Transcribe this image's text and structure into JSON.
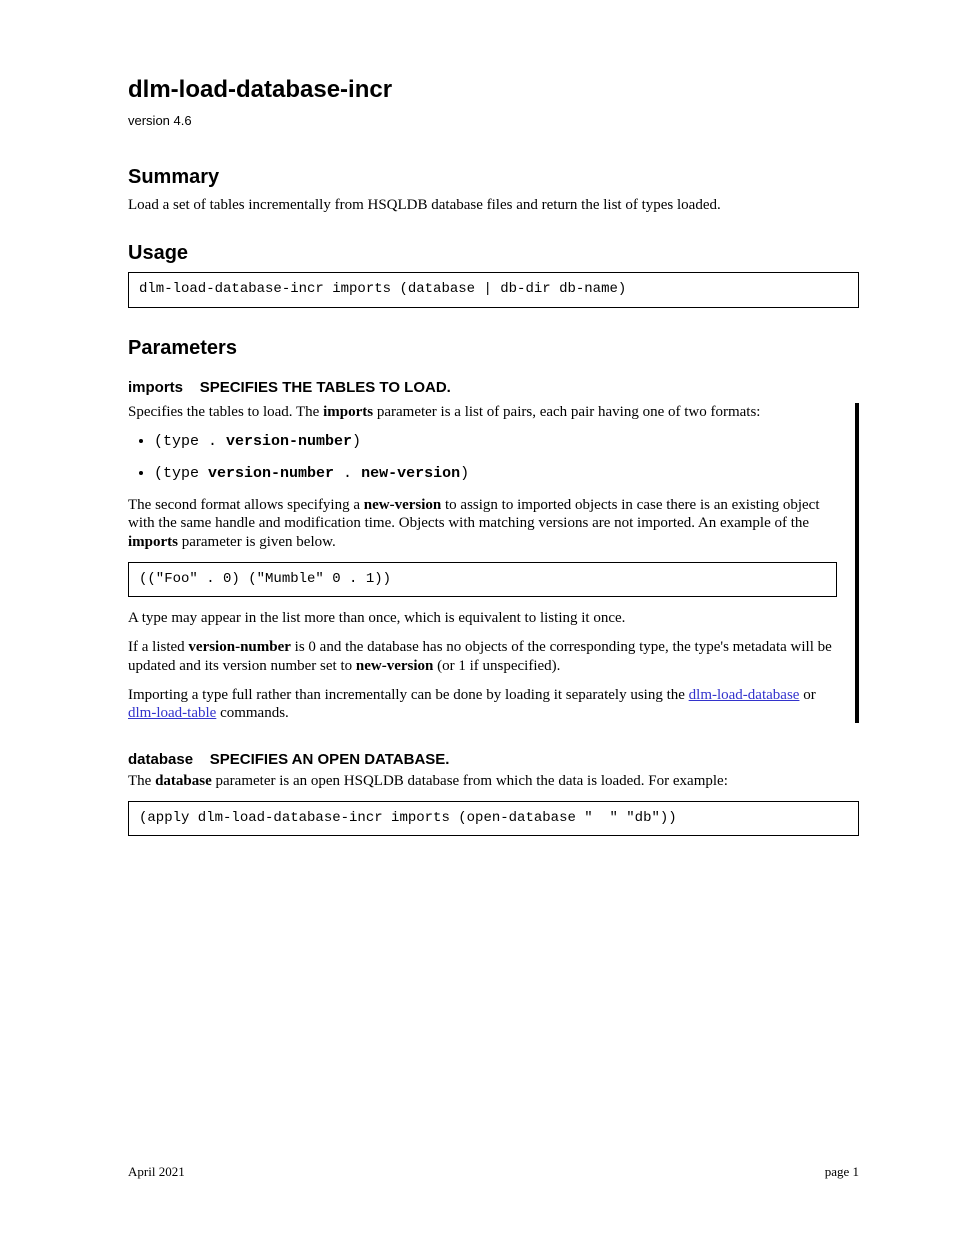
{
  "colors": {
    "link": "#3333cc",
    "text": "#000000",
    "bg": "#ffffff"
  },
  "title": "dlm-load-database-incr",
  "version": "version 4.6",
  "intro_h2": "Summary",
  "intro_p": "Load a set of tables incrementally from HSQLDB database files and return the list of types loaded.",
  "usage_h2": "Usage",
  "usage_code": "dlm-load-database-incr imports (database | db-dir db-name)",
  "params_h2": "Parameters",
  "param1": {
    "name": "imports",
    "desc": "SPECIFIES THE TABLES TO LOAD.",
    "line1_pre": "Specifies the tables to load. The ",
    "line1_imp": "imports",
    "line1_post": " parameter is a list of pairs, each pair having one of two formats:",
    "bullet1_pre": "(type . ",
    "bullet1_bold": "version-number",
    "bullet1_post": ")",
    "bullet2_pre": "(type ",
    "bullet2_bold": "version-number",
    "bullet2_mid": " . ",
    "bullet2_bold2": "new-version",
    "bullet2_post": ")",
    "para2_p1": "The second format allows specifying a ",
    "para2_nv": "new-version",
    "para2_p2": " to assign to imported objects in case there is an existing object with the same handle and modification time. Objects with matching versions are not imported. An example of the ",
    "para2_imp": "imports",
    "para2_p3": " parameter is given below.",
    "code": "((\"Foo\" . 0) (\"Mumble\" 0 . 1))",
    "p_after_code_1": "A type may appear in the list more than once, which is equivalent to listing it once.",
    "p3_pre": "If a listed ",
    "p3_vn": "version-number",
    "p3_mid": " is 0 and the database has no objects of the corresponding type, the type's metadata will be updated and its version number set to ",
    "p3_nv": "new-version",
    "p3_post": " (or 1 if unspecified).",
    "p4_pre": "Importing a type full rather than incrementally can be done by loading it separately using the ",
    "p4_link1": "dlm-load-database",
    "p4_mid": " or ",
    "p4_link2": "dlm-load-table",
    "p4_post": " commands."
  },
  "param2": {
    "name": "database",
    "desc": "SPECIFIES AN OPEN DATABASE.",
    "p_pre": "The ",
    "p_db": "database",
    "p_post": " parameter is an open HSQLDB database from which the data is loaded. For example:",
    "code": "(apply dlm-load-database-incr imports (open-database \"  \" \"db\"))"
  },
  "footer_left": "April 2021",
  "footer_right": "page 1"
}
